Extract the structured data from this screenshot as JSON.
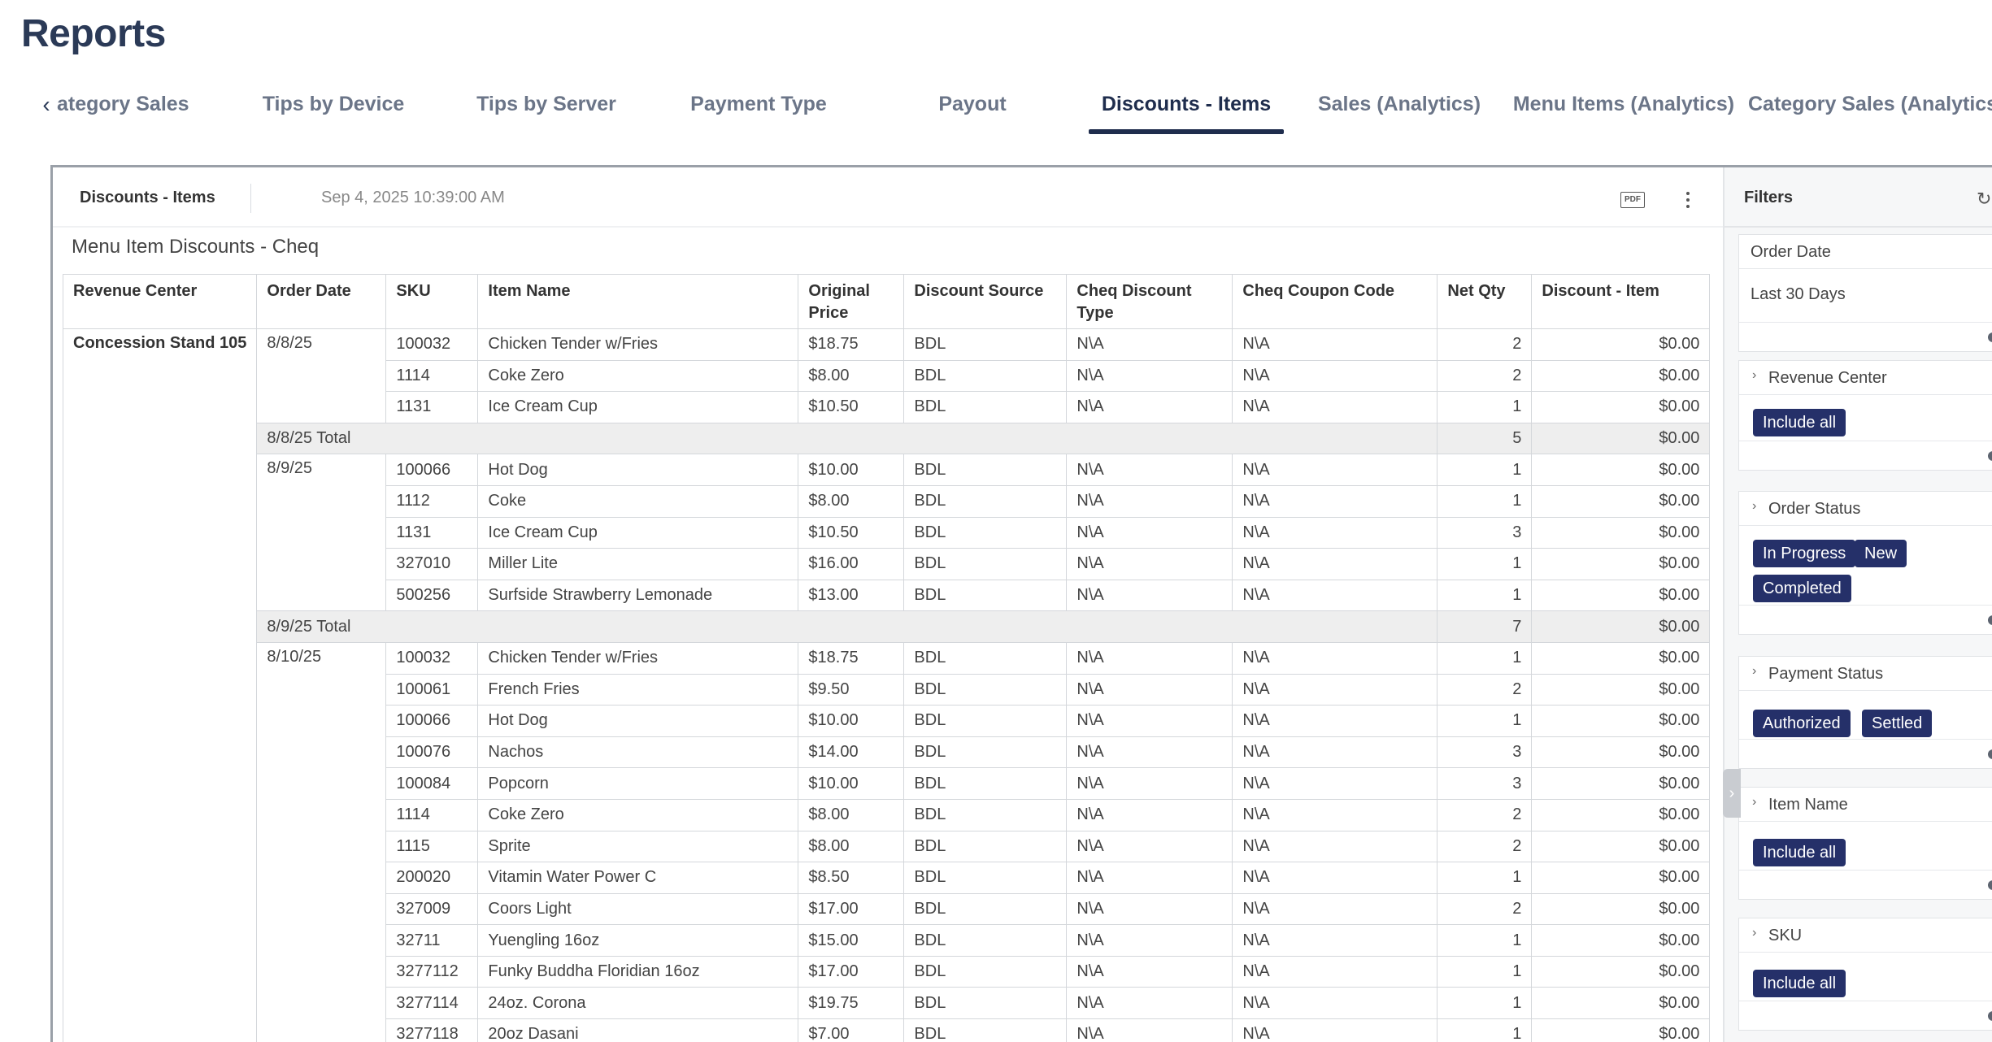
{
  "page": {
    "title": "Reports"
  },
  "tabs": [
    {
      "label": "ategory Sales",
      "active": false
    },
    {
      "label": "Tips by Device",
      "active": false
    },
    {
      "label": "Tips by Server",
      "active": false
    },
    {
      "label": "Payment Type",
      "active": false
    },
    {
      "label": "Payout",
      "active": false
    },
    {
      "label": "Discounts - Items",
      "active": true
    },
    {
      "label": "Sales (Analytics)",
      "active": false
    },
    {
      "label": "Menu Items (Analytics)",
      "active": false
    },
    {
      "label": "Category Sales (Analytics)",
      "active": false
    }
  ],
  "tab_prev_icon": "chevron-left-icon",
  "report": {
    "name": "Discounts - Items",
    "timestamp": "Sep 4, 2025 10:39:00 AM",
    "pdf_label": "PDF",
    "table_title": "Menu Item Discounts - Cheq",
    "columns": [
      "Revenue Center",
      "Order Date",
      "SKU",
      "Item Name",
      "Original Price",
      "Discount Source",
      "Cheq Discount Type",
      "Cheq Coupon Code",
      "Net Qty",
      "Discount - Item"
    ],
    "revenue_center": "Concession Stand 105",
    "groups": [
      {
        "date": "8/8/25",
        "rows": [
          [
            "100032",
            "Chicken Tender w/Fries",
            "$18.75",
            "BDL",
            "N\\A",
            "N\\A",
            "2",
            "$0.00"
          ],
          [
            "1114",
            "Coke Zero",
            "$8.00",
            "BDL",
            "N\\A",
            "N\\A",
            "2",
            "$0.00"
          ],
          [
            "1131",
            "Ice Cream Cup",
            "$10.50",
            "BDL",
            "N\\A",
            "N\\A",
            "1",
            "$0.00"
          ]
        ],
        "total_label": "8/8/25 Total",
        "total_qty": "5",
        "total_discount": "$0.00"
      },
      {
        "date": "8/9/25",
        "rows": [
          [
            "100066",
            "Hot Dog",
            "$10.00",
            "BDL",
            "N\\A",
            "N\\A",
            "1",
            "$0.00"
          ],
          [
            "1112",
            "Coke",
            "$8.00",
            "BDL",
            "N\\A",
            "N\\A",
            "1",
            "$0.00"
          ],
          [
            "1131",
            "Ice Cream Cup",
            "$10.50",
            "BDL",
            "N\\A",
            "N\\A",
            "3",
            "$0.00"
          ],
          [
            "327010",
            "Miller Lite",
            "$16.00",
            "BDL",
            "N\\A",
            "N\\A",
            "1",
            "$0.00"
          ],
          [
            "500256",
            "Surfside Strawberry Lemonade",
            "$13.00",
            "BDL",
            "N\\A",
            "N\\A",
            "1",
            "$0.00"
          ]
        ],
        "total_label": "8/9/25 Total",
        "total_qty": "7",
        "total_discount": "$0.00"
      },
      {
        "date": "8/10/25",
        "rows": [
          [
            "100032",
            "Chicken Tender w/Fries",
            "$18.75",
            "BDL",
            "N\\A",
            "N\\A",
            "1",
            "$0.00"
          ],
          [
            "100061",
            "French Fries",
            "$9.50",
            "BDL",
            "N\\A",
            "N\\A",
            "2",
            "$0.00"
          ],
          [
            "100066",
            "Hot Dog",
            "$10.00",
            "BDL",
            "N\\A",
            "N\\A",
            "1",
            "$0.00"
          ],
          [
            "100076",
            "Nachos",
            "$14.00",
            "BDL",
            "N\\A",
            "N\\A",
            "3",
            "$0.00"
          ],
          [
            "100084",
            "Popcorn",
            "$10.00",
            "BDL",
            "N\\A",
            "N\\A",
            "3",
            "$0.00"
          ],
          [
            "1114",
            "Coke Zero",
            "$8.00",
            "BDL",
            "N\\A",
            "N\\A",
            "2",
            "$0.00"
          ],
          [
            "1115",
            "Sprite",
            "$8.00",
            "BDL",
            "N\\A",
            "N\\A",
            "2",
            "$0.00"
          ],
          [
            "200020",
            "Vitamin Water Power C",
            "$8.50",
            "BDL",
            "N\\A",
            "N\\A",
            "1",
            "$0.00"
          ],
          [
            "327009",
            "Coors Light",
            "$17.00",
            "BDL",
            "N\\A",
            "N\\A",
            "2",
            "$0.00"
          ],
          [
            "32711",
            "Yuengling 16oz",
            "$15.00",
            "BDL",
            "N\\A",
            "N\\A",
            "1",
            "$0.00"
          ],
          [
            "3277112",
            "Funky Buddha Floridian 16oz",
            "$17.00",
            "BDL",
            "N\\A",
            "N\\A",
            "1",
            "$0.00"
          ],
          [
            "3277114",
            "24oz. Corona",
            "$19.75",
            "BDL",
            "N\\A",
            "N\\A",
            "1",
            "$0.00"
          ],
          [
            "3277118",
            "20oz Dasani",
            "$7.00",
            "BDL",
            "N\\A",
            "N\\A",
            "1",
            "$0.00"
          ]
        ]
      }
    ]
  },
  "filters": {
    "title": "Filters",
    "reset_icon": "refresh-icon",
    "cards": [
      {
        "label": "Order Date",
        "value": "Last 30 Days",
        "chips": []
      },
      {
        "label": "Revenue Center",
        "chips": [
          "Include all"
        ]
      },
      {
        "label": "Order Status",
        "chips": [
          "In Progress",
          "New",
          "Completed"
        ]
      },
      {
        "label": "Payment Status",
        "chips": [
          "Authorized",
          "Settled"
        ]
      },
      {
        "label": "Item Name",
        "chips": [
          "Include all"
        ]
      },
      {
        "label": "SKU",
        "chips": [
          "Include all"
        ]
      }
    ]
  },
  "colors": {
    "title": "#2b3a57",
    "active_tab": "#1f2d4d",
    "chip_bg": "#253069",
    "total_row_bg": "#eeeeee"
  }
}
